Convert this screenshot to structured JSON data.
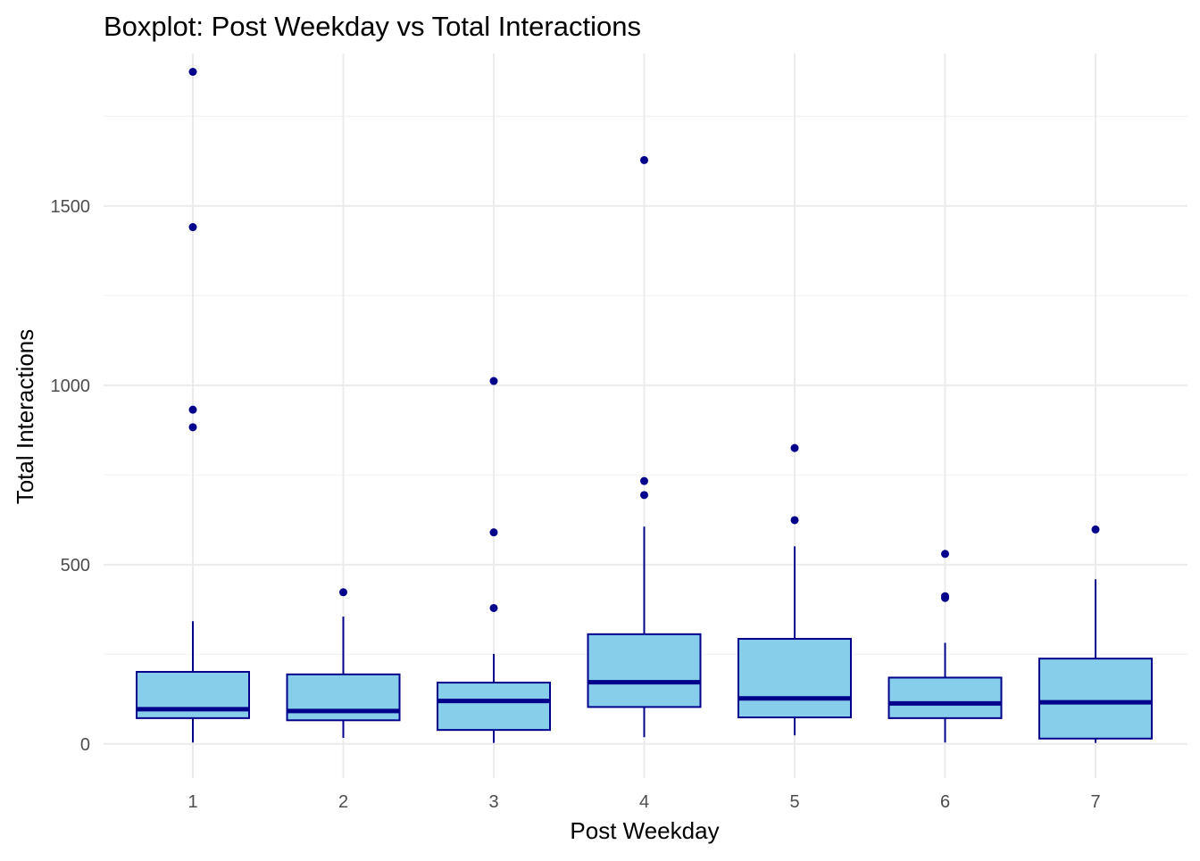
{
  "chart_data": {
    "type": "boxplot",
    "title": "Boxplot: Post Weekday vs Total Interactions",
    "xlabel": "Post Weekday",
    "ylabel": "Total Interactions",
    "ylim": [
      -95,
      1925
    ],
    "y_ticks": [
      0,
      500,
      1000,
      1500
    ],
    "y_minor_ticks": [
      250,
      750,
      1250,
      1750
    ],
    "grid": true,
    "colors": {
      "box_fill": "#87ceeb",
      "box_stroke": "#00008b",
      "outlier": "#00008b"
    },
    "categories": [
      "1",
      "2",
      "3",
      "4",
      "5",
      "6",
      "7"
    ],
    "boxes": [
      {
        "category": "1",
        "whisker_low": 4,
        "q1": 72,
        "median": 97,
        "q3": 201,
        "whisker_high": 342,
        "outliers": [
          883,
          932,
          1441,
          1874
        ]
      },
      {
        "category": "2",
        "whisker_low": 17,
        "q1": 66,
        "median": 92,
        "q3": 194,
        "whisker_high": 355,
        "outliers": [
          423
        ]
      },
      {
        "category": "3",
        "whisker_low": 3,
        "q1": 39,
        "median": 120,
        "q3": 171,
        "whisker_high": 251,
        "outliers": [
          379,
          590,
          1012
        ]
      },
      {
        "category": "4",
        "whisker_low": 19,
        "q1": 103,
        "median": 172,
        "q3": 306,
        "whisker_high": 606,
        "outliers": [
          694,
          733,
          1628
        ]
      },
      {
        "category": "5",
        "whisker_low": 24,
        "q1": 74,
        "median": 127,
        "q3": 293,
        "whisker_high": 551,
        "outliers": [
          624,
          825
        ]
      },
      {
        "category": "6",
        "whisker_low": 4,
        "q1": 72,
        "median": 113,
        "q3": 185,
        "whisker_high": 282,
        "outliers": [
          407,
          412,
          530
        ]
      },
      {
        "category": "7",
        "whisker_low": 3,
        "q1": 15,
        "median": 116,
        "q3": 238,
        "whisker_high": 459,
        "outliers": [
          598
        ]
      }
    ]
  }
}
